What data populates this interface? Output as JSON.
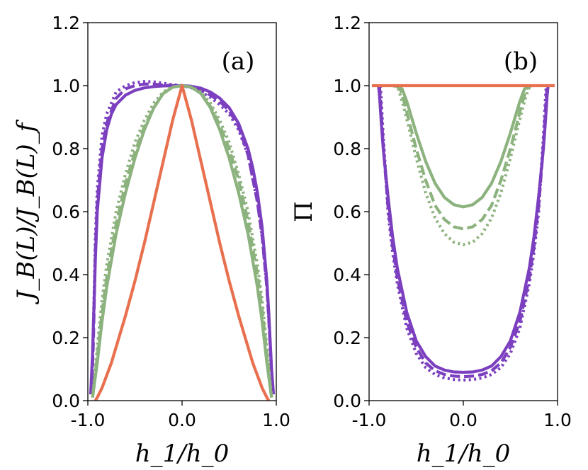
{
  "chart_data": [
    {
      "type": "line",
      "panel_label": "(a)",
      "xlabel": "h_1/h_0",
      "ylabel": "J_B(L)/J_B(L)_f",
      "xlim": [
        -1.0,
        1.0
      ],
      "ylim": [
        0.0,
        1.2
      ],
      "x_ticks": [
        "-1.0",
        "0.0",
        "1.0"
      ],
      "y_ticks": [
        "0.0",
        "0.2",
        "0.4",
        "0.6",
        "0.8",
        "1.0",
        "1.2"
      ],
      "series": [
        {
          "name": "purple-solid",
          "color": "#7b3fbf",
          "style": "solid",
          "x": [
            -0.97,
            -0.95,
            -0.92,
            -0.9,
            -0.85,
            -0.8,
            -0.75,
            -0.7,
            -0.6,
            -0.5,
            -0.4,
            -0.3,
            -0.2,
            -0.1,
            0.0,
            0.1,
            0.2,
            0.3,
            0.4,
            0.5,
            0.6,
            0.7,
            0.75,
            0.8,
            0.85,
            0.9,
            0.92,
            0.95,
            0.97
          ],
          "y": [
            0.02,
            0.15,
            0.45,
            0.6,
            0.77,
            0.86,
            0.91,
            0.94,
            0.97,
            0.985,
            0.993,
            0.997,
            0.999,
            1.0,
            1.0,
            0.998,
            0.992,
            0.98,
            0.96,
            0.93,
            0.88,
            0.8,
            0.74,
            0.66,
            0.55,
            0.38,
            0.28,
            0.1,
            0.02
          ]
        },
        {
          "name": "purple-dashed",
          "color": "#7b3fbf",
          "style": "dashed",
          "x": [
            -0.96,
            -0.94,
            -0.92,
            -0.9,
            -0.85,
            -0.8,
            -0.7,
            -0.6,
            -0.5,
            -0.4,
            -0.3,
            -0.2,
            -0.1,
            0.0,
            0.1,
            0.2,
            0.3,
            0.4,
            0.5,
            0.6,
            0.7,
            0.8,
            0.85,
            0.9,
            0.92,
            0.94,
            0.96
          ],
          "y": [
            0.02,
            0.2,
            0.48,
            0.63,
            0.8,
            0.88,
            0.96,
            0.99,
            1.0,
            1.005,
            1.005,
            1.002,
            1.0,
            1.0,
            0.995,
            0.985,
            0.97,
            0.95,
            0.92,
            0.87,
            0.78,
            0.63,
            0.52,
            0.36,
            0.26,
            0.15,
            0.02
          ]
        },
        {
          "name": "purple-dotted",
          "color": "#7b3fbf",
          "style": "dotted",
          "x": [
            -0.96,
            -0.94,
            -0.92,
            -0.9,
            -0.85,
            -0.8,
            -0.7,
            -0.6,
            -0.5,
            -0.4,
            -0.3,
            -0.2,
            -0.1,
            0.0,
            0.1,
            0.2,
            0.3,
            0.4,
            0.5,
            0.6,
            0.7,
            0.8,
            0.85,
            0.9,
            0.92,
            0.94,
            0.96
          ],
          "y": [
            0.02,
            0.25,
            0.52,
            0.67,
            0.84,
            0.91,
            0.98,
            1.0,
            1.01,
            1.013,
            1.012,
            1.008,
            1.003,
            1.0,
            0.993,
            0.98,
            0.963,
            0.94,
            0.91,
            0.86,
            0.78,
            0.63,
            0.52,
            0.36,
            0.26,
            0.15,
            0.02
          ]
        },
        {
          "name": "green-solid",
          "color": "#8cb27e",
          "style": "solid",
          "x": [
            -0.95,
            -0.9,
            -0.85,
            -0.8,
            -0.7,
            -0.6,
            -0.5,
            -0.4,
            -0.3,
            -0.2,
            -0.1,
            0.0,
            0.1,
            0.2,
            0.3,
            0.4,
            0.5,
            0.6,
            0.7,
            0.8,
            0.85,
            0.9,
            0.95
          ],
          "y": [
            0.01,
            0.12,
            0.25,
            0.36,
            0.53,
            0.66,
            0.77,
            0.86,
            0.93,
            0.975,
            0.995,
            1.0,
            0.995,
            0.975,
            0.93,
            0.86,
            0.77,
            0.66,
            0.53,
            0.36,
            0.25,
            0.12,
            0.01
          ]
        },
        {
          "name": "green-dashed",
          "color": "#8cb27e",
          "style": "dashed",
          "x": [
            -0.95,
            -0.9,
            -0.85,
            -0.8,
            -0.7,
            -0.6,
            -0.5,
            -0.4,
            -0.3,
            -0.2,
            -0.1,
            0.0,
            0.1,
            0.2,
            0.3,
            0.4,
            0.5,
            0.6,
            0.7,
            0.8,
            0.85,
            0.9,
            0.95
          ],
          "y": [
            0.01,
            0.14,
            0.28,
            0.39,
            0.56,
            0.69,
            0.79,
            0.87,
            0.93,
            0.975,
            0.995,
            1.0,
            0.995,
            0.975,
            0.935,
            0.875,
            0.8,
            0.7,
            0.57,
            0.4,
            0.29,
            0.15,
            0.01
          ]
        },
        {
          "name": "green-dotted",
          "color": "#8cb27e",
          "style": "dotted",
          "x": [
            -0.95,
            -0.9,
            -0.85,
            -0.8,
            -0.7,
            -0.6,
            -0.5,
            -0.4,
            -0.3,
            -0.2,
            -0.1,
            0.0,
            0.1,
            0.2,
            0.3,
            0.4,
            0.5,
            0.6,
            0.7,
            0.8,
            0.85,
            0.9,
            0.95
          ],
          "y": [
            0.01,
            0.17,
            0.32,
            0.43,
            0.6,
            0.72,
            0.82,
            0.89,
            0.945,
            0.98,
            0.996,
            1.0,
            0.996,
            0.98,
            0.945,
            0.89,
            0.82,
            0.72,
            0.6,
            0.43,
            0.32,
            0.17,
            0.01
          ]
        },
        {
          "name": "orange-solid",
          "color": "#e8704f",
          "style": "solid",
          "x": [
            -0.92,
            -0.9,
            -0.85,
            -0.8,
            -0.75,
            -0.7,
            -0.6,
            -0.5,
            -0.4,
            -0.3,
            -0.2,
            -0.1,
            0.0,
            0.1,
            0.2,
            0.3,
            0.4,
            0.5,
            0.6,
            0.7,
            0.75,
            0.8,
            0.85,
            0.9,
            0.92
          ],
          "y": [
            0.0,
            0.01,
            0.04,
            0.08,
            0.12,
            0.17,
            0.27,
            0.38,
            0.5,
            0.63,
            0.76,
            0.89,
            1.0,
            0.89,
            0.76,
            0.63,
            0.5,
            0.38,
            0.27,
            0.17,
            0.12,
            0.08,
            0.04,
            0.01,
            0.0
          ]
        }
      ]
    },
    {
      "type": "line",
      "panel_label": "(b)",
      "xlabel": "h_1/h_0",
      "ylabel": "Π",
      "xlim": [
        -1.0,
        1.0
      ],
      "ylim": [
        0.0,
        1.2
      ],
      "x_ticks": [
        "-1.0",
        "0.0",
        "1.0"
      ],
      "y_ticks": [
        "0.0",
        "0.2",
        "0.4",
        "0.6",
        "0.8",
        "1.0",
        "1.2"
      ],
      "series": [
        {
          "name": "purple-solid",
          "color": "#7b3fbf",
          "style": "solid",
          "x": [
            -0.9,
            -0.89,
            -0.87,
            -0.85,
            -0.8,
            -0.75,
            -0.7,
            -0.6,
            -0.5,
            -0.4,
            -0.3,
            -0.2,
            -0.1,
            0.0,
            0.1,
            0.2,
            0.3,
            0.4,
            0.5,
            0.6,
            0.7,
            0.75,
            0.8,
            0.85,
            0.87,
            0.89,
            0.9
          ],
          "y": [
            1.0,
            0.97,
            0.88,
            0.8,
            0.65,
            0.52,
            0.42,
            0.28,
            0.19,
            0.14,
            0.11,
            0.097,
            0.091,
            0.09,
            0.091,
            0.097,
            0.11,
            0.14,
            0.19,
            0.28,
            0.42,
            0.52,
            0.65,
            0.8,
            0.88,
            0.97,
            1.0
          ]
        },
        {
          "name": "purple-dashed",
          "color": "#7b3fbf",
          "style": "dashed",
          "x": [
            -0.89,
            -0.88,
            -0.86,
            -0.84,
            -0.8,
            -0.75,
            -0.7,
            -0.6,
            -0.5,
            -0.4,
            -0.3,
            -0.2,
            -0.1,
            0.0,
            0.1,
            0.2,
            0.3,
            0.4,
            0.5,
            0.6,
            0.7,
            0.75,
            0.8,
            0.84,
            0.86,
            0.88,
            0.89
          ],
          "y": [
            1.0,
            0.96,
            0.86,
            0.77,
            0.62,
            0.49,
            0.39,
            0.25,
            0.17,
            0.12,
            0.095,
            0.083,
            0.078,
            0.076,
            0.078,
            0.083,
            0.095,
            0.12,
            0.17,
            0.25,
            0.39,
            0.49,
            0.62,
            0.77,
            0.86,
            0.96,
            1.0
          ]
        },
        {
          "name": "purple-dotted",
          "color": "#7b3fbf",
          "style": "dotted",
          "x": [
            -0.88,
            -0.87,
            -0.85,
            -0.83,
            -0.8,
            -0.75,
            -0.7,
            -0.6,
            -0.5,
            -0.4,
            -0.3,
            -0.2,
            -0.1,
            0.0,
            0.1,
            0.2,
            0.3,
            0.4,
            0.5,
            0.6,
            0.7,
            0.75,
            0.8,
            0.83,
            0.85,
            0.87,
            0.88
          ],
          "y": [
            1.0,
            0.95,
            0.84,
            0.75,
            0.6,
            0.47,
            0.37,
            0.23,
            0.15,
            0.105,
            0.083,
            0.072,
            0.067,
            0.065,
            0.067,
            0.072,
            0.083,
            0.105,
            0.15,
            0.23,
            0.37,
            0.47,
            0.6,
            0.75,
            0.84,
            0.95,
            1.0
          ]
        },
        {
          "name": "green-solid",
          "color": "#8cb27e",
          "style": "solid",
          "x": [
            -0.7,
            -0.65,
            -0.6,
            -0.55,
            -0.5,
            -0.4,
            -0.3,
            -0.2,
            -0.1,
            0.0,
            0.1,
            0.2,
            0.3,
            0.4,
            0.5,
            0.55,
            0.6,
            0.65,
            0.7
          ],
          "y": [
            1.0,
            0.99,
            0.95,
            0.9,
            0.85,
            0.76,
            0.69,
            0.645,
            0.622,
            0.615,
            0.622,
            0.645,
            0.69,
            0.76,
            0.85,
            0.9,
            0.95,
            0.99,
            1.0
          ]
        },
        {
          "name": "green-dashed",
          "color": "#8cb27e",
          "style": "dashed",
          "x": [
            -0.72,
            -0.67,
            -0.62,
            -0.57,
            -0.5,
            -0.4,
            -0.3,
            -0.2,
            -0.1,
            0.0,
            0.1,
            0.2,
            0.3,
            0.4,
            0.5,
            0.57,
            0.62,
            0.67,
            0.72
          ],
          "y": [
            1.0,
            0.99,
            0.94,
            0.88,
            0.8,
            0.7,
            0.62,
            0.575,
            0.552,
            0.545,
            0.552,
            0.575,
            0.62,
            0.7,
            0.8,
            0.88,
            0.94,
            0.99,
            1.0
          ]
        },
        {
          "name": "green-dotted",
          "color": "#8cb27e",
          "style": "dotted",
          "x": [
            -0.74,
            -0.69,
            -0.64,
            -0.58,
            -0.5,
            -0.4,
            -0.3,
            -0.2,
            -0.1,
            0.0,
            0.1,
            0.2,
            0.3,
            0.4,
            0.5,
            0.58,
            0.64,
            0.69,
            0.74
          ],
          "y": [
            1.0,
            0.99,
            0.94,
            0.87,
            0.77,
            0.66,
            0.58,
            0.53,
            0.503,
            0.495,
            0.503,
            0.53,
            0.58,
            0.66,
            0.77,
            0.87,
            0.94,
            0.99,
            1.0
          ]
        },
        {
          "name": "orange-solid",
          "color": "#e8704f",
          "style": "solid",
          "x": [
            -0.97,
            0.0,
            0.97
          ],
          "y": [
            1.0,
            1.0,
            1.0
          ]
        }
      ]
    }
  ]
}
